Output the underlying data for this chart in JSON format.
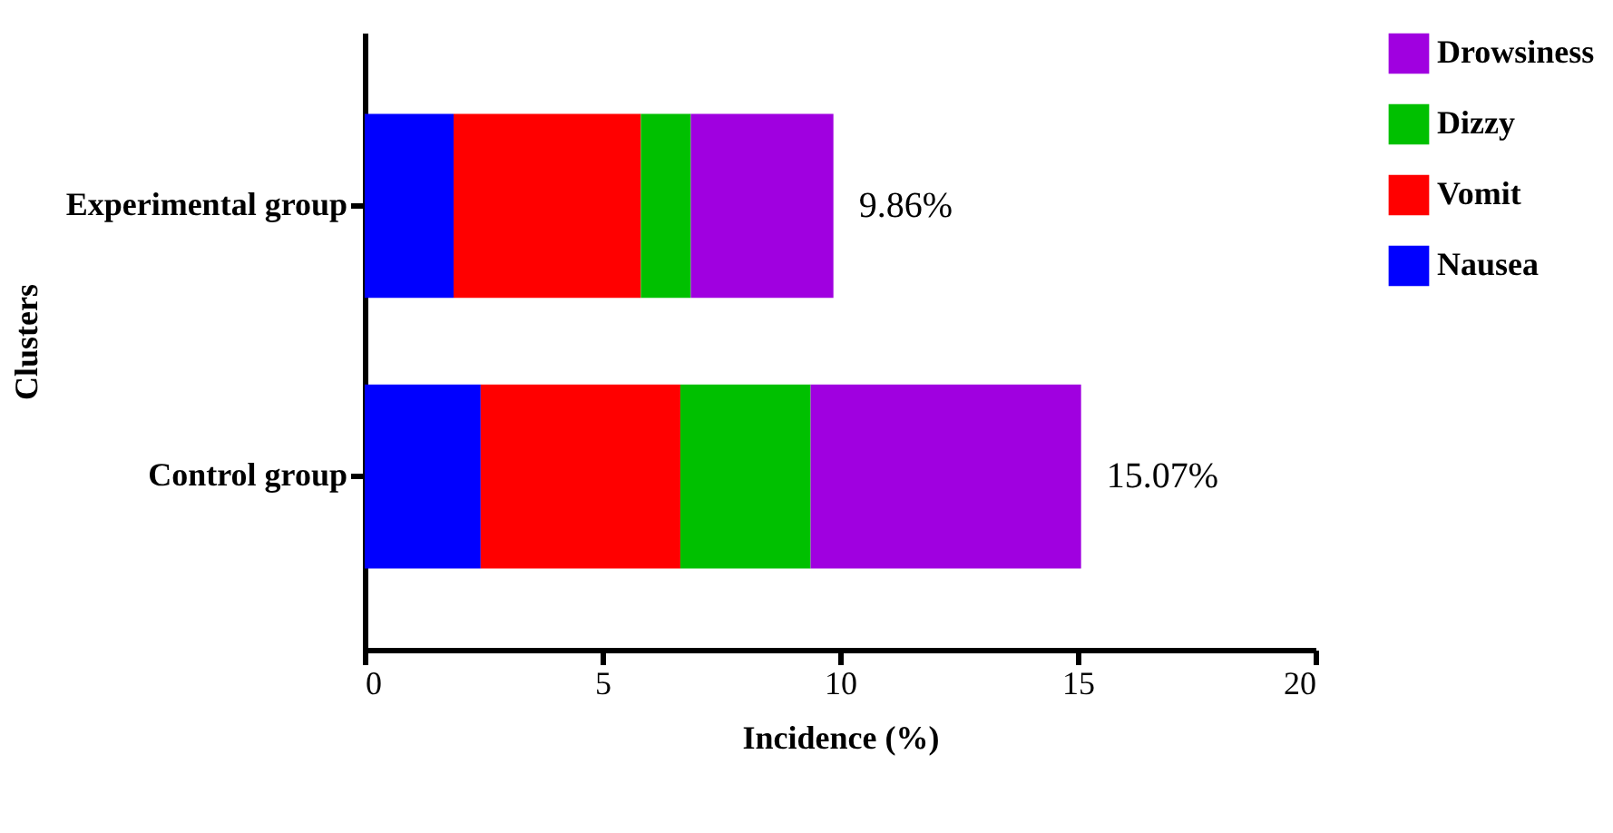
{
  "chart_data": {
    "type": "bar",
    "orientation": "horizontal",
    "stacked": true,
    "xlabel": "Incidence (%)",
    "ylabel": "Clusters",
    "categories": [
      "Experimental group",
      "Control group"
    ],
    "series": [
      {
        "name": "Nausea",
        "color": "#0000ff",
        "values": [
          1.87,
          2.44
        ]
      },
      {
        "name": "Vomit",
        "color": "#ff0000",
        "values": [
          3.94,
          4.2
        ]
      },
      {
        "name": "Dizzy",
        "color": "#00c000",
        "values": [
          1.05,
          2.74
        ]
      },
      {
        "name": "Drowsiness",
        "color": "#a000e0",
        "values": [
          3.0,
          5.69
        ]
      }
    ],
    "totals": [
      "9.86%",
      "15.07%"
    ],
    "xlim": [
      0,
      20
    ],
    "xticks": [
      0,
      5,
      10,
      15,
      20
    ],
    "grid": false,
    "legend": "top right"
  }
}
